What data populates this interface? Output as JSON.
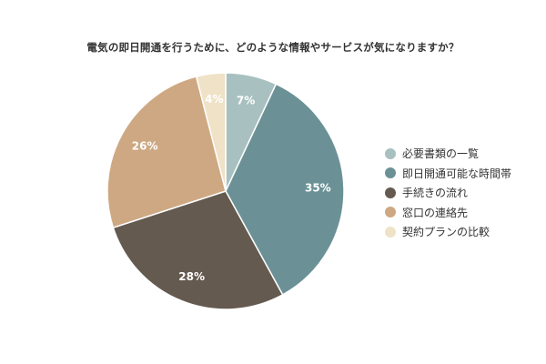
{
  "chart_data": {
    "type": "pie",
    "title": "電気の即日開通を行うために、どのような情報やサービスが気になりますか？",
    "categories": [
      "必要書類の一覧",
      "即日開通可能な時間帯",
      "手続きの流れ",
      "窓口の連絡先",
      "契約プランの比較"
    ],
    "values": [
      7,
      35,
      28,
      26,
      4
    ],
    "value_labels": [
      "7%",
      "35%",
      "28%",
      "26%",
      "4%"
    ],
    "colors": [
      "#a9c0c0",
      "#6b9196",
      "#655a50",
      "#cea882",
      "#efe2c7"
    ],
    "legend": "right",
    "start_angle": "12 o'clock",
    "direction": "clockwise"
  }
}
